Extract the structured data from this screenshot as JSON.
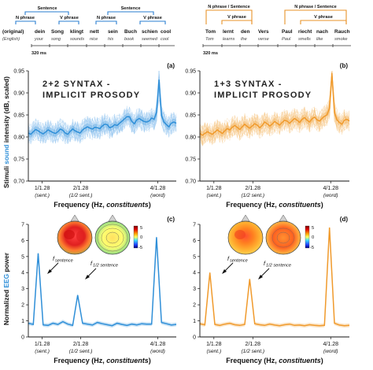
{
  "colors": {
    "blue": "#2f8fd8",
    "blue_light": "#9dcaf0",
    "orange": "#f09a2c",
    "orange_light": "#f7c98d",
    "bracket_blue": "#2a7fd0",
    "bracket_orange": "#e8932a"
  },
  "stimuli": {
    "left": {
      "row_labels": {
        "original": "(original)",
        "english": "(English)"
      },
      "words": [
        {
          "german": "dein",
          "english": "your"
        },
        {
          "german": "Song",
          "english": "song"
        },
        {
          "german": "klingt",
          "english": "sounds"
        },
        {
          "german": "nett",
          "english": "nice"
        },
        {
          "german": "sein",
          "english": "his"
        },
        {
          "german": "Buch",
          "english": "book"
        },
        {
          "german": "schien",
          "english": "seemed"
        },
        {
          "german": "cool",
          "english": "cool"
        }
      ],
      "brackets": {
        "sentence": "Sentence",
        "n_phrase": "N phrase",
        "v_phrase": "V phrase"
      },
      "timescale": "320 ms"
    },
    "right": {
      "words": [
        {
          "german": "Tom",
          "english": "Tom"
        },
        {
          "german": "lernt",
          "english": "learns"
        },
        {
          "german": "den",
          "english": "the"
        },
        {
          "german": "Vers",
          "english": "verse"
        },
        {
          "german": "Paul",
          "english": "Paul"
        },
        {
          "german": "riecht",
          "english": "smells"
        },
        {
          "german": "nach",
          "english": "like"
        },
        {
          "german": "Rauch",
          "english": "smoke"
        }
      ],
      "brackets": {
        "n_sentence": "N phrase / Sentence",
        "v_phrase": "V phrase"
      },
      "timescale": "320 ms"
    }
  },
  "ticks": {
    "labels": [
      "1/1.28",
      "2/1.28",
      "4/1.28"
    ],
    "sub_labels": [
      "(sent.)",
      "(1/2 sent.)",
      "(word)"
    ],
    "positions_hz": [
      0.78125,
      1.5625,
      3.125
    ]
  },
  "shared_labels": {
    "xlabel_prefix": "Frequency (Hz, ",
    "xlabel_italic": "constituents",
    "xlabel_suffix": ")",
    "ylabel_top": {
      "pre": "Stimuli ",
      "hl": "sound",
      "post": " intensity (dB, scaled)"
    },
    "ylabel_bottom": {
      "pre": "Normalized ",
      "hl": "EEG",
      "post": " power"
    }
  },
  "annotations": {
    "f_sentence": {
      "f": "f",
      "sub": "sentence"
    },
    "f_half_sentence": {
      "f": "f",
      "sub": "1/2 sentence"
    }
  },
  "colorbar": {
    "ticks": [
      "5",
      "0",
      "-5"
    ]
  },
  "chart_data": [
    {
      "id": "a",
      "panel_label": "(a)",
      "type": "line",
      "title": "2+2 SYNTAX -\nIMPLICIT PROSODY",
      "ylim": [
        0.7,
        0.95
      ],
      "yticks": [
        0.7,
        0.75,
        0.8,
        0.85,
        0.9,
        0.95
      ],
      "xlim": [
        0.5,
        3.5
      ],
      "xticks": [
        0.78125,
        1.5625,
        3.125
      ],
      "x_start": 0.5,
      "x_step": 0.05,
      "mean": [
        0.809,
        0.806,
        0.812,
        0.817,
        0.814,
        0.81,
        0.807,
        0.811,
        0.816,
        0.813,
        0.81,
        0.808,
        0.812,
        0.818,
        0.815,
        0.809,
        0.806,
        0.813,
        0.818,
        0.814,
        0.811,
        0.809,
        0.816,
        0.82,
        0.823,
        0.82,
        0.818,
        0.822,
        0.821,
        0.819,
        0.825,
        0.829,
        0.828,
        0.821,
        0.823,
        0.828,
        0.826,
        0.831,
        0.836,
        0.841,
        0.846,
        0.846,
        0.835,
        0.83,
        0.839,
        0.842,
        0.838,
        0.835,
        0.834,
        0.836,
        0.843,
        0.84,
        0.856,
        0.93,
        0.849,
        0.834,
        0.828,
        0.823,
        0.831,
        0.834,
        0.831
      ],
      "band": 0.008,
      "trial_count": 30,
      "trial_spread": 0.025
    },
    {
      "id": "b",
      "panel_label": "(b)",
      "type": "line",
      "title": "1+3 SYNTAX -\nIMPLICIT PROSODY",
      "ylim": [
        0.7,
        0.95
      ],
      "yticks": [
        0.7,
        0.75,
        0.8,
        0.85,
        0.9,
        0.95
      ],
      "xlim": [
        0.5,
        3.5
      ],
      "xticks": [
        0.78125,
        1.5625,
        3.125
      ],
      "x_start": 0.5,
      "x_step": 0.05,
      "mean": [
        0.808,
        0.804,
        0.808,
        0.812,
        0.809,
        0.806,
        0.811,
        0.816,
        0.812,
        0.808,
        0.814,
        0.819,
        0.816,
        0.822,
        0.826,
        0.822,
        0.817,
        0.823,
        0.829,
        0.824,
        0.82,
        0.825,
        0.83,
        0.827,
        0.821,
        0.826,
        0.834,
        0.83,
        0.825,
        0.829,
        0.835,
        0.831,
        0.827,
        0.833,
        0.838,
        0.836,
        0.831,
        0.837,
        0.842,
        0.838,
        0.833,
        0.84,
        0.844,
        0.838,
        0.834,
        0.841,
        0.845,
        0.839,
        0.836,
        0.842,
        0.847,
        0.85,
        0.865,
        0.945,
        0.856,
        0.839,
        0.833,
        0.829,
        0.838,
        0.84,
        0.836
      ],
      "band": 0.008,
      "trial_count": 30,
      "trial_spread": 0.025
    },
    {
      "id": "c",
      "panel_label": "(c)",
      "type": "line",
      "ylim": [
        0,
        7
      ],
      "yticks": [
        0,
        1,
        2,
        3,
        4,
        5,
        6,
        7
      ],
      "xlim": [
        0.5,
        3.5
      ],
      "xticks": [
        0.78125,
        1.5625,
        3.125
      ],
      "x_start": 0.5,
      "x_step": 0.1,
      "mean": [
        0.85,
        0.78,
        5.2,
        0.75,
        0.72,
        0.85,
        0.78,
        0.95,
        0.8,
        0.72,
        2.6,
        0.85,
        0.8,
        0.74,
        0.9,
        0.82,
        0.76,
        0.7,
        0.85,
        0.78,
        0.72,
        0.8,
        0.75,
        0.82,
        0.8,
        0.8,
        6.2,
        0.9,
        0.82,
        0.74,
        0.78
      ],
      "band": 0.12
    },
    {
      "id": "d",
      "panel_label": "(d)",
      "type": "line",
      "ylim": [
        0,
        7
      ],
      "yticks": [
        0,
        1,
        2,
        3,
        4,
        5,
        6,
        7
      ],
      "xlim": [
        0.5,
        3.5
      ],
      "xticks": [
        0.78125,
        1.5625,
        3.125
      ],
      "x_start": 0.5,
      "x_step": 0.1,
      "mean": [
        0.82,
        0.75,
        4.0,
        0.78,
        0.72,
        0.8,
        0.85,
        0.76,
        0.72,
        0.78,
        3.6,
        0.82,
        0.76,
        0.72,
        0.8,
        0.74,
        0.7,
        0.76,
        0.8,
        0.72,
        0.74,
        0.7,
        0.76,
        0.72,
        0.7,
        0.72,
        6.8,
        0.85,
        0.74,
        0.7,
        0.72
      ],
      "band": 0.12
    }
  ]
}
